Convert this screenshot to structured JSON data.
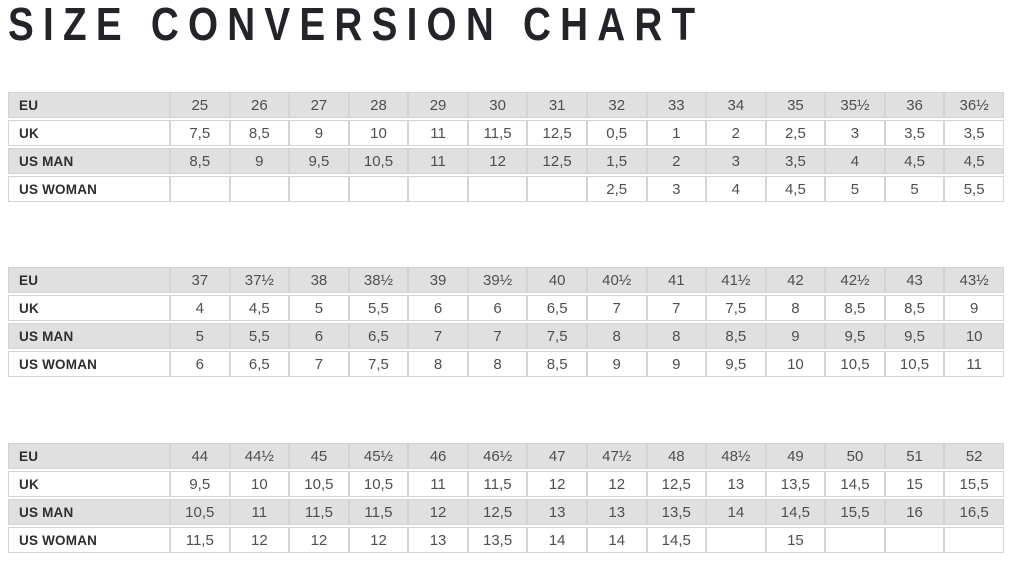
{
  "title": "SIZE CONVERSION CHART",
  "colors": {
    "shaded_row_bg": "#e0e0e0",
    "plain_row_bg": "#ffffff",
    "cell_border": "#d4d4d4",
    "title_text": "#232329",
    "label_text": "#2e2e2e",
    "value_text": "#4f4f4f"
  },
  "chart_data": {
    "type": "table",
    "title": "SIZE CONVERSION CHART",
    "row_labels": [
      "EU",
      "UK",
      "US MAN",
      "US WOMAN"
    ],
    "tables": [
      {
        "rows": [
          {
            "label": "EU",
            "values": [
              "25",
              "26",
              "27",
              "28",
              "29",
              "30",
              "31",
              "32",
              "33",
              "34",
              "35",
              "35½",
              "36",
              "36½"
            ]
          },
          {
            "label": "UK",
            "values": [
              "7,5",
              "8,5",
              "9",
              "10",
              "11",
              "11,5",
              "12,5",
              "0,5",
              "1",
              "2",
              "2,5",
              "3",
              "3,5",
              "3,5"
            ]
          },
          {
            "label": "US MAN",
            "values": [
              "8,5",
              "9",
              "9,5",
              "10,5",
              "11",
              "12",
              "12,5",
              "1,5",
              "2",
              "3",
              "3,5",
              "4",
              "4,5",
              "4,5"
            ]
          },
          {
            "label": "US WOMAN",
            "values": [
              "",
              "",
              "",
              "",
              "",
              "",
              "",
              "2,5",
              "3",
              "4",
              "4,5",
              "5",
              "5",
              "5,5"
            ]
          }
        ]
      },
      {
        "rows": [
          {
            "label": "EU",
            "values": [
              "37",
              "37½",
              "38",
              "38½",
              "39",
              "39½",
              "40",
              "40½",
              "41",
              "41½",
              "42",
              "42½",
              "43",
              "43½"
            ]
          },
          {
            "label": "UK",
            "values": [
              "4",
              "4,5",
              "5",
              "5,5",
              "6",
              "6",
              "6,5",
              "7",
              "7",
              "7,5",
              "8",
              "8,5",
              "8,5",
              "9"
            ]
          },
          {
            "label": "US MAN",
            "values": [
              "5",
              "5,5",
              "6",
              "6,5",
              "7",
              "7",
              "7,5",
              "8",
              "8",
              "8,5",
              "9",
              "9,5",
              "9,5",
              "10"
            ]
          },
          {
            "label": "US WOMAN",
            "values": [
              "6",
              "6,5",
              "7",
              "7,5",
              "8",
              "8",
              "8,5",
              "9",
              "9",
              "9,5",
              "10",
              "10,5",
              "10,5",
              "11"
            ]
          }
        ]
      },
      {
        "rows": [
          {
            "label": "EU",
            "values": [
              "44",
              "44½",
              "45",
              "45½",
              "46",
              "46½",
              "47",
              "47½",
              "48",
              "48½",
              "49",
              "50",
              "51",
              "52"
            ]
          },
          {
            "label": "UK",
            "values": [
              "9,5",
              "10",
              "10,5",
              "10,5",
              "11",
              "11,5",
              "12",
              "12",
              "12,5",
              "13",
              "13,5",
              "14,5",
              "15",
              "15,5"
            ]
          },
          {
            "label": "US MAN",
            "values": [
              "10,5",
              "11",
              "11,5",
              "11,5",
              "12",
              "12,5",
              "13",
              "13",
              "13,5",
              "14",
              "14,5",
              "15,5",
              "16",
              "16,5"
            ]
          },
          {
            "label": "US WOMAN",
            "values": [
              "11,5",
              "12",
              "12",
              "12",
              "13",
              "13,5",
              "14",
              "14",
              "14,5",
              "",
              "15",
              "",
              "",
              ""
            ]
          }
        ]
      }
    ]
  }
}
